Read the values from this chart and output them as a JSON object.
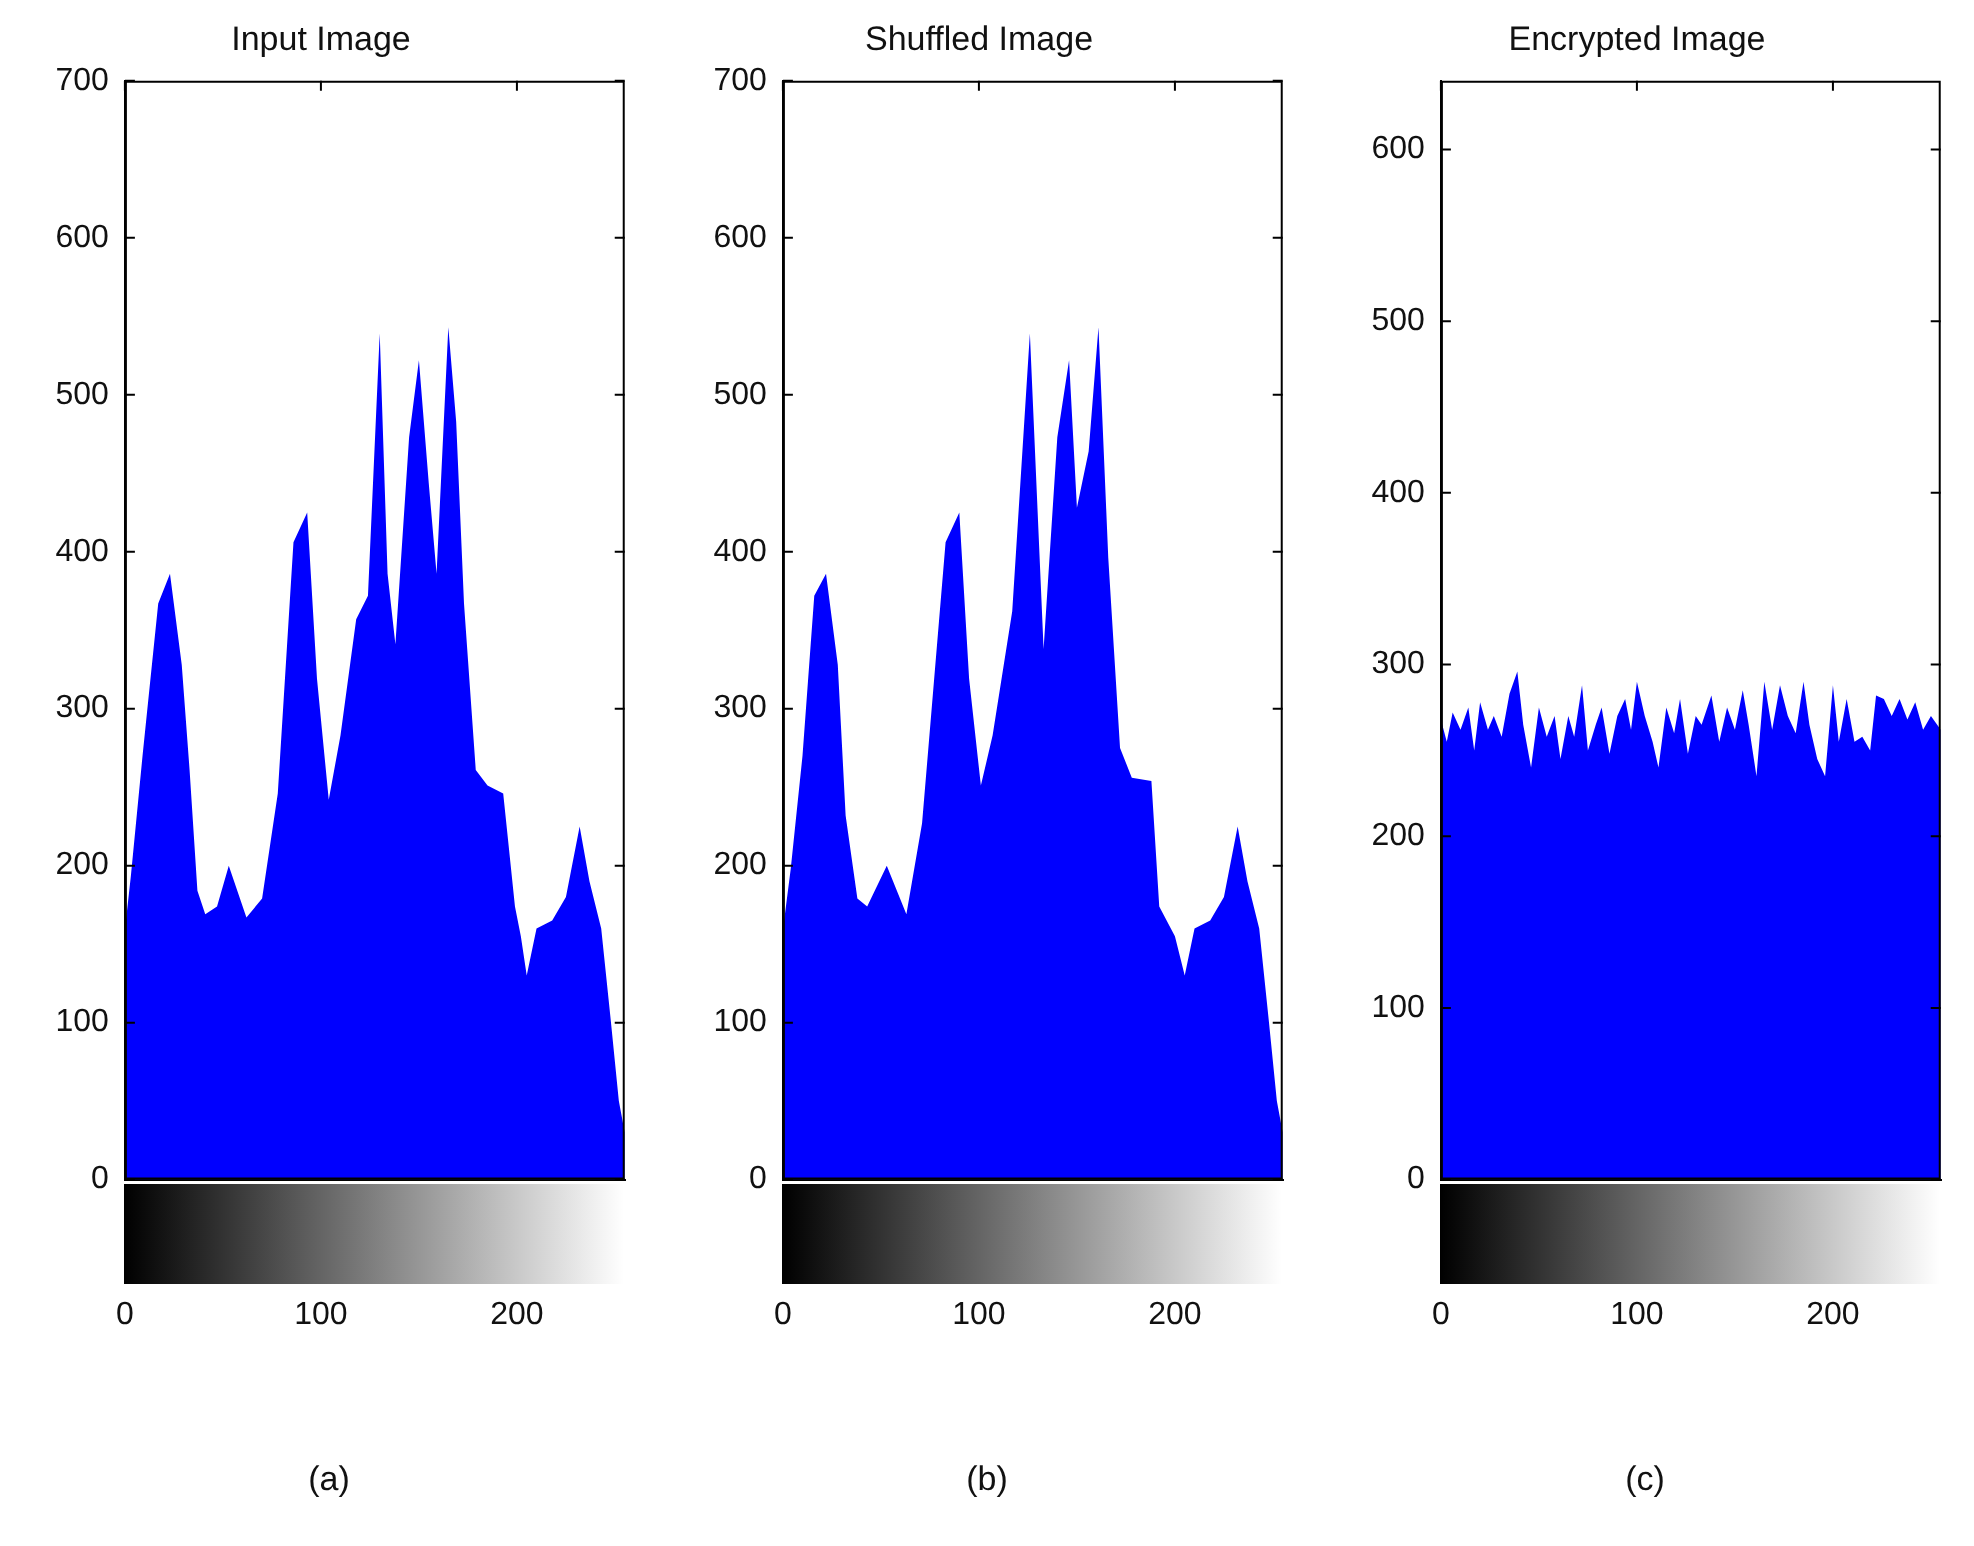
{
  "chart_data": [
    {
      "type": "area",
      "title": "Input Image",
      "color": "#0000ff",
      "xlim": [
        0,
        255
      ],
      "xticks": [
        0,
        100,
        200
      ],
      "ylim": [
        0,
        700
      ],
      "yticks": [
        0,
        100,
        200,
        300,
        400,
        500,
        600,
        700
      ],
      "grid": false,
      "legend": false,
      "marker": "none",
      "annotations": [
        "(a)"
      ],
      "x": [
        0,
        3,
        9,
        17,
        23,
        29,
        33,
        37,
        41,
        47,
        53,
        62,
        70,
        78,
        86,
        93,
        98,
        104,
        110,
        118,
        124,
        130,
        134,
        138,
        145,
        150,
        155,
        159,
        165,
        169,
        173,
        179,
        185,
        193,
        199,
        202,
        205,
        210,
        218,
        225,
        232,
        237,
        243,
        248,
        252,
        255
      ],
      "values": [
        159,
        193,
        270,
        367,
        386,
        328,
        261,
        184,
        169,
        174,
        200,
        167,
        179,
        246,
        406,
        425,
        319,
        242,
        283,
        357,
        372,
        539,
        386,
        341,
        473,
        522,
        444,
        386,
        543,
        483,
        367,
        261,
        251,
        246,
        174,
        155,
        130,
        160,
        165,
        180,
        225,
        190,
        160,
        100,
        50,
        30
      ]
    },
    {
      "type": "area",
      "title": "Shuffled Image",
      "color": "#0000ff",
      "xlim": [
        0,
        255
      ],
      "xticks": [
        0,
        100,
        200
      ],
      "ylim": [
        0,
        700
      ],
      "yticks": [
        0,
        100,
        200,
        300,
        400,
        500,
        600,
        700
      ],
      "grid": false,
      "legend": false,
      "marker": "none",
      "annotations": [
        "(b)"
      ],
      "x": [
        0,
        4,
        10,
        16,
        22,
        28,
        32,
        38,
        43,
        53,
        63,
        71,
        83,
        90,
        95,
        101,
        107,
        117,
        126,
        133,
        140,
        146,
        150,
        156,
        161,
        166,
        172,
        178,
        188,
        192,
        200,
        205,
        210,
        218,
        225,
        232,
        237,
        243,
        248,
        252,
        255
      ],
      "values": [
        159,
        198,
        270,
        372,
        386,
        328,
        232,
        179,
        174,
        200,
        169,
        227,
        406,
        425,
        319,
        251,
        283,
        362,
        539,
        338,
        473,
        522,
        428,
        464,
        543,
        396,
        275,
        256,
        254,
        174,
        155,
        130,
        160,
        165,
        180,
        225,
        190,
        160,
        100,
        50,
        30
      ]
    },
    {
      "type": "area",
      "title": "Encrypted Image",
      "color": "#0000ff",
      "xlim": [
        0,
        255
      ],
      "xticks": [
        0,
        100,
        200
      ],
      "ylim": [
        0,
        640
      ],
      "yticks": [
        0,
        100,
        200,
        300,
        400,
        500,
        600
      ],
      "grid": false,
      "legend": false,
      "marker": "none",
      "annotations": [
        "(c)"
      ],
      "x": [
        0,
        3,
        6,
        10,
        14,
        17,
        20,
        24,
        27,
        31,
        35,
        39,
        42,
        46,
        50,
        54,
        58,
        61,
        65,
        68,
        72,
        75,
        79,
        82,
        86,
        90,
        94,
        97,
        100,
        104,
        108,
        111,
        115,
        119,
        122,
        126,
        130,
        133,
        138,
        142,
        146,
        150,
        154,
        157,
        161,
        165,
        169,
        173,
        177,
        181,
        185,
        188,
        192,
        196,
        200,
        203,
        207,
        211,
        215,
        219,
        222,
        226,
        230,
        234,
        238,
        242,
        246,
        250,
        255
      ],
      "values": [
        268,
        255,
        272,
        262,
        275,
        250,
        278,
        262,
        270,
        258,
        283,
        296,
        265,
        240,
        275,
        258,
        270,
        245,
        270,
        258,
        288,
        250,
        265,
        275,
        248,
        270,
        280,
        262,
        290,
        270,
        255,
        240,
        275,
        260,
        280,
        248,
        270,
        265,
        282,
        255,
        275,
        262,
        285,
        265,
        235,
        290,
        262,
        288,
        270,
        260,
        290,
        265,
        245,
        235,
        288,
        255,
        280,
        255,
        258,
        250,
        282,
        280,
        270,
        280,
        268,
        278,
        262,
        270,
        262
      ]
    }
  ]
}
